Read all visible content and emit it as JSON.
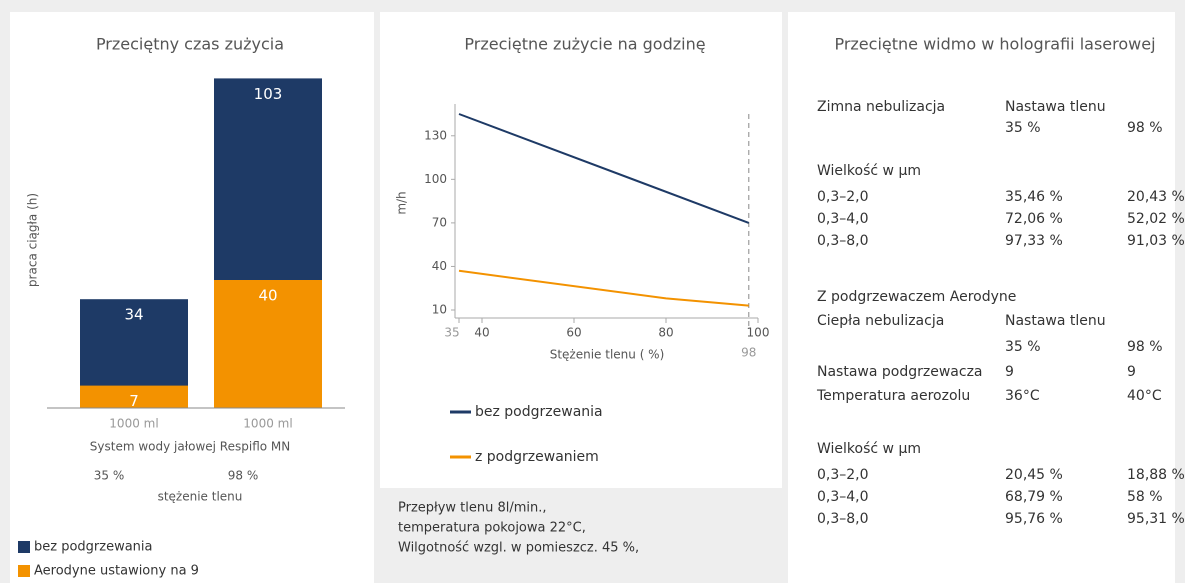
{
  "chart_data": [
    {
      "type": "bar",
      "title": "Przeciętny czas zużycia",
      "ylabel": "praca ciągła (h)",
      "categories": [
        "1000 ml",
        "1000 ml"
      ],
      "xlabel": "System wody jałowej Respiflo MN",
      "subcategories": [
        "35 %",
        "98 %"
      ],
      "sublabel": "stężenie tlenu",
      "series": [
        {
          "name": "bez podgrzewania",
          "color": "#1e3a66",
          "values": [
            34,
            103
          ]
        },
        {
          "name": "Aerodyne ustawiony na 9",
          "color": "#f39200",
          "values": [
            7,
            40
          ]
        }
      ],
      "ylim": [
        0,
        105
      ],
      "overlap": true
    },
    {
      "type": "line",
      "title": "Przeciętne zużycie na godzinę",
      "ylabel": "m/h",
      "xlabel": "Stężenie tlenu ( %)",
      "xlim": [
        35,
        100
      ],
      "ylim": [
        10,
        145
      ],
      "xticks": [
        40,
        60,
        80,
        100
      ],
      "yticks": [
        10,
        40,
        70,
        100,
        130
      ],
      "xmarks": [
        {
          "value": 35
        },
        {
          "value": 98,
          "dashed": true
        }
      ],
      "series": [
        {
          "name": "bez podgrzewania",
          "color": "#1e3a66",
          "x": [
            35,
            98
          ],
          "values": [
            145,
            70
          ]
        },
        {
          "name": "z podgrzewaniem",
          "color": "#f39200",
          "x": [
            35,
            80,
            98
          ],
          "values": [
            37,
            18,
            13
          ]
        }
      ],
      "note": [
        "Przepływ tlenu 8l/min.,",
        "temperatura pokojowa 22°C,",
        "Wilgotność wzgl. w pomieszcz. 45 %,"
      ]
    }
  ],
  "table": {
    "title": "Przeciętne widmo w holografii laserowej",
    "sections": [
      {
        "label": "Zimna nebulizacja",
        "header": "Nastawa tlenu",
        "columns": [
          "35 %",
          "98 %"
        ],
        "subtitle": "Wielkość w µm",
        "rows": [
          [
            "0,3–2,0",
            "35,46 %",
            "20,43 %"
          ],
          [
            "0,3–4,0",
            "72,06 %",
            "52,02 %"
          ],
          [
            "0,3–8,0",
            "97,33 %",
            "91,03 %"
          ]
        ]
      },
      {
        "intro": "Z podgrzewaczem Aerodyne",
        "label": "Ciepła nebulizacja",
        "header": "Nastawa tlenu",
        "columns": [
          "35 %",
          "98 %"
        ],
        "extra_rows": [
          [
            "Nastawa podgrzewacza",
            "9",
            "9"
          ],
          [
            "Temperatura aerozolu",
            "36°C",
            "40°C"
          ]
        ],
        "subtitle": "Wielkość w µm",
        "rows": [
          [
            "0,3–2,0",
            "20,45 %",
            "18,88 %"
          ],
          [
            "0,3–4,0",
            "68,79 %",
            "58 %"
          ],
          [
            "0,3–8,0",
            "95,76 %",
            "95,31 %"
          ]
        ]
      }
    ]
  }
}
